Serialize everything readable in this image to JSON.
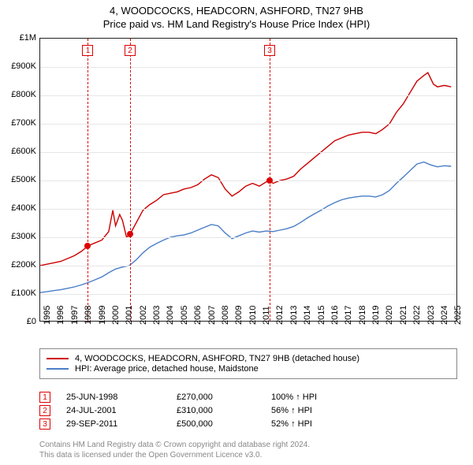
{
  "title": {
    "line1": "4, WOODCOCKS, HEADCORN, ASHFORD, TN27 9HB",
    "line2": "Price paid vs. HM Land Registry's House Price Index (HPI)"
  },
  "chart": {
    "type": "line",
    "background_color": "#ffffff",
    "grid_color": "#e6e6e6",
    "border_color": "#222222",
    "x_range": [
      1995,
      2025.5
    ],
    "x_ticks": [
      1995,
      1996,
      1997,
      1998,
      1999,
      2000,
      2001,
      2002,
      2003,
      2004,
      2005,
      2006,
      2007,
      2008,
      2009,
      2010,
      2011,
      2012,
      2013,
      2014,
      2015,
      2016,
      2017,
      2018,
      2019,
      2020,
      2021,
      2022,
      2023,
      2024,
      2025
    ],
    "y_range": [
      0,
      1000000
    ],
    "y_tick_step": 100000,
    "y_tick_labels": [
      "£0",
      "£100K",
      "£200K",
      "£300K",
      "£400K",
      "£500K",
      "£600K",
      "£700K",
      "£800K",
      "£900K",
      "£1M"
    ],
    "tick_fontsize": 11,
    "series": [
      {
        "name": "property",
        "label": "4, WOODCOCKS, HEADCORN, ASHFORD, TN27 9HB (detached house)",
        "color": "#cc0000",
        "line_width": 1.4,
        "points": [
          [
            1995.0,
            200000
          ],
          [
            1995.5,
            205000
          ],
          [
            1996.0,
            210000
          ],
          [
            1996.5,
            215000
          ],
          [
            1997.0,
            225000
          ],
          [
            1997.5,
            235000
          ],
          [
            1998.0,
            250000
          ],
          [
            1998.5,
            270000
          ],
          [
            1999.0,
            280000
          ],
          [
            1999.5,
            290000
          ],
          [
            2000.0,
            320000
          ],
          [
            2000.3,
            395000
          ],
          [
            2000.5,
            340000
          ],
          [
            2000.8,
            380000
          ],
          [
            2001.0,
            360000
          ],
          [
            2001.3,
            300000
          ],
          [
            2001.55,
            310000
          ],
          [
            2002.0,
            350000
          ],
          [
            2002.5,
            395000
          ],
          [
            2003.0,
            415000
          ],
          [
            2003.5,
            430000
          ],
          [
            2004.0,
            450000
          ],
          [
            2004.5,
            455000
          ],
          [
            2005.0,
            460000
          ],
          [
            2005.5,
            470000
          ],
          [
            2006.0,
            475000
          ],
          [
            2006.5,
            485000
          ],
          [
            2007.0,
            505000
          ],
          [
            2007.5,
            520000
          ],
          [
            2008.0,
            510000
          ],
          [
            2008.5,
            470000
          ],
          [
            2009.0,
            445000
          ],
          [
            2009.5,
            460000
          ],
          [
            2010.0,
            480000
          ],
          [
            2010.5,
            490000
          ],
          [
            2011.0,
            480000
          ],
          [
            2011.5,
            495000
          ],
          [
            2011.75,
            500000
          ],
          [
            2012.0,
            490000
          ],
          [
            2012.5,
            500000
          ],
          [
            2013.0,
            505000
          ],
          [
            2013.5,
            515000
          ],
          [
            2014.0,
            540000
          ],
          [
            2014.5,
            560000
          ],
          [
            2015.0,
            580000
          ],
          [
            2015.5,
            600000
          ],
          [
            2016.0,
            620000
          ],
          [
            2016.5,
            640000
          ],
          [
            2017.0,
            650000
          ],
          [
            2017.5,
            660000
          ],
          [
            2018.0,
            665000
          ],
          [
            2018.5,
            670000
          ],
          [
            2019.0,
            670000
          ],
          [
            2019.5,
            665000
          ],
          [
            2020.0,
            680000
          ],
          [
            2020.5,
            700000
          ],
          [
            2021.0,
            740000
          ],
          [
            2021.5,
            770000
          ],
          [
            2022.0,
            810000
          ],
          [
            2022.5,
            850000
          ],
          [
            2023.0,
            870000
          ],
          [
            2023.3,
            880000
          ],
          [
            2023.7,
            840000
          ],
          [
            2024.0,
            830000
          ],
          [
            2024.5,
            835000
          ],
          [
            2025.0,
            830000
          ]
        ]
      },
      {
        "name": "hpi",
        "label": "HPI: Average price, detached house, Maidstone",
        "color": "#4a7ec8",
        "line_width": 1.4,
        "points": [
          [
            1995.0,
            105000
          ],
          [
            1995.5,
            108000
          ],
          [
            1996.0,
            112000
          ],
          [
            1996.5,
            115000
          ],
          [
            1997.0,
            120000
          ],
          [
            1997.5,
            125000
          ],
          [
            1998.0,
            132000
          ],
          [
            1998.5,
            140000
          ],
          [
            1999.0,
            150000
          ],
          [
            1999.5,
            160000
          ],
          [
            2000.0,
            175000
          ],
          [
            2000.5,
            188000
          ],
          [
            2001.0,
            195000
          ],
          [
            2001.5,
            200000
          ],
          [
            2002.0,
            220000
          ],
          [
            2002.5,
            245000
          ],
          [
            2003.0,
            265000
          ],
          [
            2003.5,
            278000
          ],
          [
            2004.0,
            290000
          ],
          [
            2004.5,
            300000
          ],
          [
            2005.0,
            305000
          ],
          [
            2005.5,
            308000
          ],
          [
            2006.0,
            315000
          ],
          [
            2006.5,
            325000
          ],
          [
            2007.0,
            335000
          ],
          [
            2007.5,
            345000
          ],
          [
            2008.0,
            340000
          ],
          [
            2008.5,
            315000
          ],
          [
            2009.0,
            295000
          ],
          [
            2009.5,
            305000
          ],
          [
            2010.0,
            315000
          ],
          [
            2010.5,
            322000
          ],
          [
            2011.0,
            318000
          ],
          [
            2011.5,
            322000
          ],
          [
            2012.0,
            320000
          ],
          [
            2012.5,
            325000
          ],
          [
            2013.0,
            330000
          ],
          [
            2013.5,
            338000
          ],
          [
            2014.0,
            352000
          ],
          [
            2014.5,
            368000
          ],
          [
            2015.0,
            382000
          ],
          [
            2015.5,
            395000
          ],
          [
            2016.0,
            410000
          ],
          [
            2016.5,
            422000
          ],
          [
            2017.0,
            432000
          ],
          [
            2017.5,
            438000
          ],
          [
            2018.0,
            442000
          ],
          [
            2018.5,
            445000
          ],
          [
            2019.0,
            445000
          ],
          [
            2019.5,
            442000
          ],
          [
            2020.0,
            450000
          ],
          [
            2020.5,
            465000
          ],
          [
            2021.0,
            490000
          ],
          [
            2021.5,
            512000
          ],
          [
            2022.0,
            535000
          ],
          [
            2022.5,
            558000
          ],
          [
            2023.0,
            565000
          ],
          [
            2023.5,
            555000
          ],
          [
            2024.0,
            548000
          ],
          [
            2024.5,
            552000
          ],
          [
            2025.0,
            550000
          ]
        ]
      }
    ],
    "sale_markers": [
      {
        "n": "1",
        "year": 1998.48,
        "price": 270000
      },
      {
        "n": "2",
        "year": 2001.56,
        "price": 310000
      },
      {
        "n": "3",
        "year": 2011.75,
        "price": 500000
      }
    ]
  },
  "legend": {
    "rows": [
      {
        "color": "#cc0000",
        "label": "4, WOODCOCKS, HEADCORN, ASHFORD, TN27 9HB (detached house)"
      },
      {
        "color": "#4a7ec8",
        "label": "HPI: Average price, detached house, Maidstone"
      }
    ]
  },
  "sales": [
    {
      "n": "1",
      "date": "25-JUN-1998",
      "price": "£270,000",
      "pct": "100% ↑ HPI"
    },
    {
      "n": "2",
      "date": "24-JUL-2001",
      "price": "£310,000",
      "pct": "56% ↑ HPI"
    },
    {
      "n": "3",
      "date": "29-SEP-2011",
      "price": "£500,000",
      "pct": "52% ↑ HPI"
    }
  ],
  "footer": {
    "line1": "Contains HM Land Registry data © Crown copyright and database right 2024.",
    "line2": "This data is licensed under the Open Government Licence v3.0."
  }
}
